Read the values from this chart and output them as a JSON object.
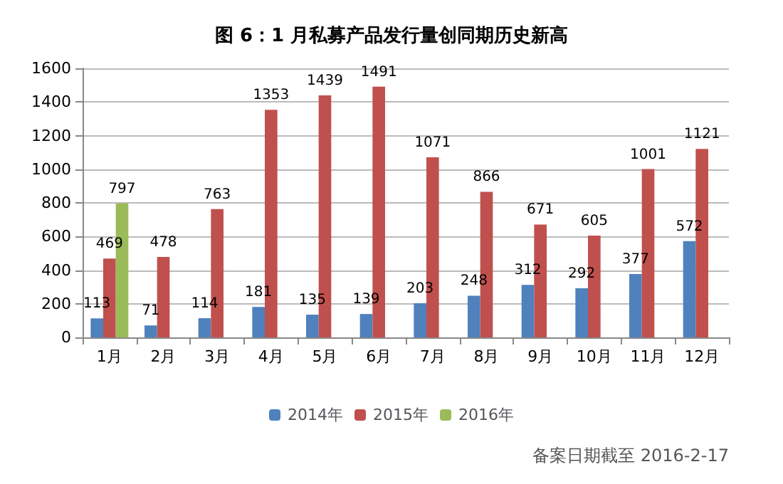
{
  "chart_data": {
    "type": "bar",
    "title": "图 6：1 月私募产品发行量创同期历史新高",
    "categories": [
      "1月",
      "2月",
      "3月",
      "4月",
      "5月",
      "6月",
      "7月",
      "8月",
      "9月",
      "10月",
      "11月",
      "12月"
    ],
    "series": [
      {
        "name": "2014年",
        "color": "#4f81bd",
        "values": [
          113,
          71,
          114,
          181,
          135,
          139,
          203,
          248,
          312,
          292,
          377,
          572
        ]
      },
      {
        "name": "2015年",
        "color": "#c0504d",
        "values": [
          469,
          478,
          763,
          1353,
          1439,
          1491,
          1071,
          866,
          671,
          605,
          1001,
          1121
        ]
      },
      {
        "name": "2016年",
        "color": "#9bbb59",
        "values": [
          797,
          null,
          null,
          null,
          null,
          null,
          null,
          null,
          null,
          null,
          null,
          null
        ]
      }
    ],
    "ylim": [
      0,
      1600
    ],
    "yticks": [
      0,
      200,
      400,
      600,
      800,
      1000,
      1200,
      1400,
      1600
    ],
    "grid": "y",
    "legend": "bottom",
    "data_labels": true,
    "annotations": [
      "备案日期截至 2016-2-17"
    ]
  }
}
